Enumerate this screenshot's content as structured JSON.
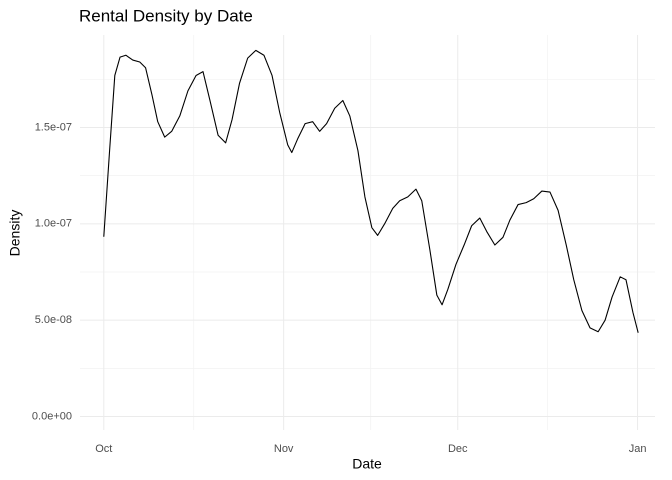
{
  "chart_data": {
    "type": "line",
    "title": "Rental Density by Date",
    "x_label": "Date",
    "y_label": "Density",
    "x": [
      0,
      1.0,
      1.9,
      2.8,
      3.8,
      5.0,
      6.2,
      7.2,
      8.3,
      9.3,
      10.5,
      11.7,
      13.1,
      14.5,
      15.9,
      17.1,
      18.3,
      19.7,
      21.0,
      22.1,
      23.4,
      24.8,
      26.2,
      27.6,
      29.0,
      30.3,
      31.7,
      32.4,
      33.4,
      34.7,
      36.0,
      37.2,
      38.4,
      39.8,
      41.2,
      42.4,
      43.8,
      45.0,
      46.2,
      47.2,
      48.4,
      49.8,
      51.0,
      52.4,
      53.8,
      54.8,
      56.2,
      57.4,
      58.3,
      59.3,
      60.7,
      62.1,
      63.4,
      64.8,
      66.0,
      67.4,
      68.8,
      70.0,
      71.4,
      72.8,
      74.1,
      75.5,
      76.9,
      78.3,
      79.7,
      81.0,
      82.4,
      83.8,
      85.2,
      86.4,
      87.6,
      89.0,
      90.0,
      91.2,
      92.1
    ],
    "series": [
      {
        "name": "density",
        "color": "#000000",
        "values": [
          9.33e-08,
          1.38e-07,
          1.77e-07,
          1.865e-07,
          1.875e-07,
          1.85e-07,
          1.84e-07,
          1.81e-07,
          1.67e-07,
          1.53e-07,
          1.45e-07,
          1.48e-07,
          1.56e-07,
          1.69e-07,
          1.77e-07,
          1.79e-07,
          1.64e-07,
          1.46e-07,
          1.42e-07,
          1.54e-07,
          1.73e-07,
          1.86e-07,
          1.9e-07,
          1.875e-07,
          1.77e-07,
          1.58e-07,
          1.41e-07,
          1.37e-07,
          1.44e-07,
          1.52e-07,
          1.53e-07,
          1.48e-07,
          1.52e-07,
          1.6e-07,
          1.64e-07,
          1.56e-07,
          1.38e-07,
          1.14e-07,
          9.8e-08,
          9.4e-08,
          1e-07,
          1.08e-07,
          1.12e-07,
          1.14e-07,
          1.18e-07,
          1.12e-07,
          8.65e-08,
          6.3e-08,
          5.8e-08,
          6.6e-08,
          7.9e-08,
          8.9e-08,
          9.9e-08,
          1.03e-07,
          9.6e-08,
          8.9e-08,
          9.3e-08,
          1.02e-07,
          1.1e-07,
          1.11e-07,
          1.13e-07,
          1.17e-07,
          1.165e-07,
          1.07e-07,
          8.9e-08,
          7.1e-08,
          5.5e-08,
          4.6e-08,
          4.4e-08,
          5e-08,
          6.2e-08,
          7.25e-08,
          7.1e-08,
          5.4e-08,
          4.35e-08
        ]
      }
    ],
    "xlim": [
      -4.1,
      95
    ],
    "xticks": [
      {
        "value": 0,
        "label": "Oct"
      },
      {
        "value": 31,
        "label": "Nov"
      },
      {
        "value": 61,
        "label": "Dec"
      },
      {
        "value": 92,
        "label": "Jan"
      }
    ],
    "ylim": [
      -7e-09,
      1.98e-07
    ],
    "yticks": [
      {
        "value": 0,
        "label": "0.0e+00"
      },
      {
        "value": 5e-08,
        "label": "5.0e-08"
      },
      {
        "value": 1e-07,
        "label": "1.0e-07"
      },
      {
        "value": 1.5e-07,
        "label": "1.5e-07"
      }
    ],
    "grid": true
  }
}
